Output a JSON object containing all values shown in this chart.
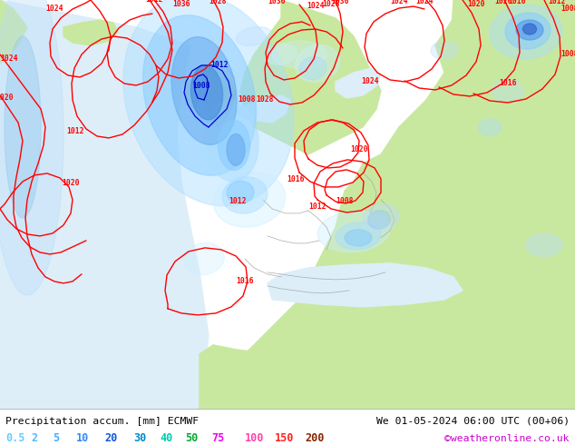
{
  "title_left": "Precipitation accum. [mm] ECMWF",
  "title_right": "We 01-05-2024 06:00 UTC (00+06)",
  "watermark": "©weatheronline.co.uk",
  "legend_labels": [
    "0.5",
    "2",
    "5",
    "10",
    "20",
    "30",
    "40",
    "50",
    "75",
    "100",
    "150",
    "200"
  ],
  "fig_width": 6.34,
  "fig_height": 4.9,
  "map_bg_color": "#e8e8e8",
  "land_color": "#c8e8a0",
  "sea_color": "#d8eef8",
  "bottom_bg": "#ffffff",
  "text_colors_legend": [
    "#66ccff",
    "#55bbff",
    "#44aaff",
    "#3388ff",
    "#1155dd",
    "#0088cc",
    "#00ccaa",
    "#00aa33",
    "#ee00ee",
    "#ff44aa",
    "#ff2222",
    "#882200"
  ],
  "watermark_color": "#cc00cc",
  "title_color": "#000000",
  "isobar_color_red": "#ff0000",
  "isobar_color_blue": "#0000cc"
}
